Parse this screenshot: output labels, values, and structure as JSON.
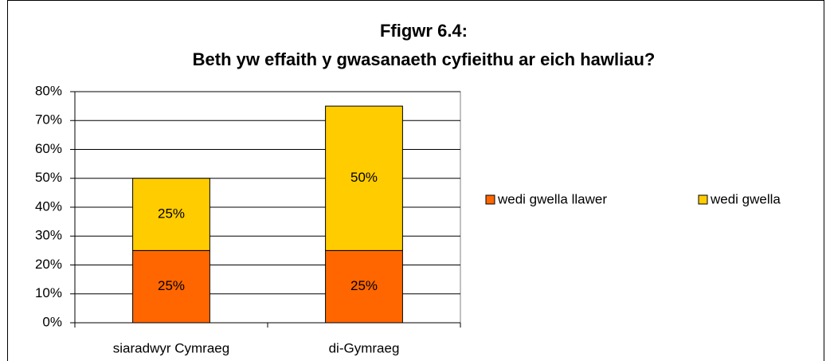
{
  "chart_data": {
    "type": "stacked_bar",
    "title": [
      "Ffigwr 6.4:",
      "Beth yw effaith y gwasanaeth cyfieithu ar eich hawliau?"
    ],
    "categories": [
      "siaradwyr Cymraeg",
      "di-Gymraeg"
    ],
    "series": [
      {
        "name": "wedi gwella llawer",
        "color": "#ff6600",
        "values": [
          25,
          25
        ],
        "value_labels": [
          "25%",
          "25%"
        ]
      },
      {
        "name": "wedi gwella",
        "color": "#ffcc00",
        "values": [
          25,
          50
        ],
        "value_labels": [
          "25%",
          "50%"
        ]
      }
    ],
    "ylim": [
      0,
      80
    ],
    "yticks": [
      {
        "value": 0,
        "label": "0%"
      },
      {
        "value": 10,
        "label": "10%"
      },
      {
        "value": 20,
        "label": "20%"
      },
      {
        "value": 30,
        "label": "30%"
      },
      {
        "value": 40,
        "label": "40%"
      },
      {
        "value": 50,
        "label": "50%"
      },
      {
        "value": 60,
        "label": "60%"
      },
      {
        "value": 70,
        "label": "70%"
      },
      {
        "value": 80,
        "label": "80%"
      }
    ],
    "grid": true,
    "legend": "right"
  }
}
